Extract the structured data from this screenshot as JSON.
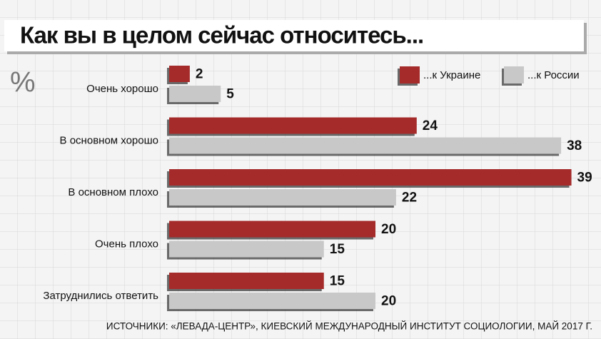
{
  "chart_data": {
    "type": "bar",
    "orientation": "horizontal",
    "title": "Как вы в целом сейчас относитесь...",
    "unit_label": "%",
    "categories": [
      "Очень хорошо",
      "В основном хорошо",
      "В основном плохо",
      "Очень плохо",
      "Затруднились ответить"
    ],
    "series": [
      {
        "name": "...к Украине",
        "color": "#a52a2a",
        "values": [
          2,
          24,
          39,
          20,
          15
        ]
      },
      {
        "name": "...к России",
        "color": "#c8c8c8",
        "values": [
          5,
          38,
          22,
          15,
          20
        ]
      }
    ],
    "xlim": [
      0,
      40
    ],
    "source": "ИСТОЧНИКИ: «ЛЕВАДА-ЦЕНТР», КИЕВСКИЙ МЕЖДУНАРОДНЫЙ ИНСТИТУТ СОЦИОЛОГИИ, МАЙ 2017 Г."
  }
}
